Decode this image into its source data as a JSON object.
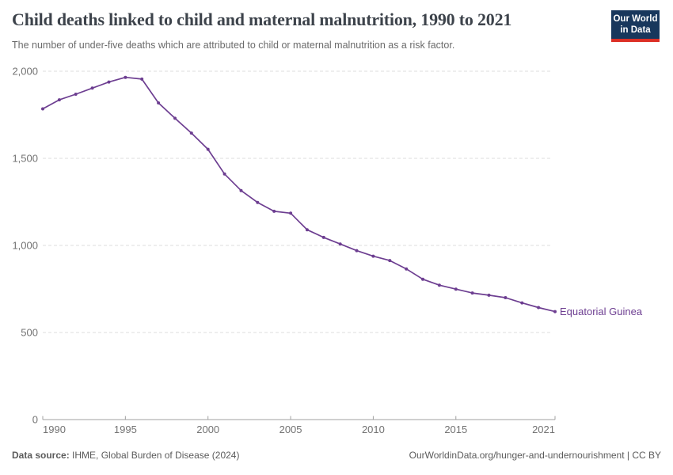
{
  "header": {
    "title": "Child deaths linked to child and maternal malnutrition, 1990 to 2021",
    "subtitle": "The number of under-five deaths which are attributed to child or maternal malnutrition as a risk factor.",
    "logo": {
      "line1": "Our World",
      "line2": "in Data",
      "bg_color": "#18375c",
      "accent_color": "#dc2f25"
    }
  },
  "chart_data": {
    "type": "line",
    "title": "Child deaths linked to child and maternal malnutrition, 1990 to 2021",
    "subtitle": "The number of under-five deaths which are attributed to child or maternal malnutrition as a risk factor.",
    "xlabel": "",
    "ylabel": "",
    "ylim": [
      0,
      2000
    ],
    "yticks": [
      0,
      500,
      1000,
      1500,
      2000
    ],
    "ytick_labels": [
      "0",
      "500",
      "1,000",
      "1,500",
      "2,000"
    ],
    "xticks": [
      1990,
      1995,
      2000,
      2005,
      2010,
      2015,
      2021
    ],
    "xtick_labels": [
      "1990",
      "1995",
      "2000",
      "2005",
      "2010",
      "2015",
      "2021"
    ],
    "grid": "horizontal-dashed",
    "legend_position": "end-of-line-label",
    "x": [
      1990,
      1991,
      1992,
      1993,
      1994,
      1995,
      1996,
      1997,
      1998,
      1999,
      2000,
      2001,
      2002,
      2003,
      2004,
      2005,
      2006,
      2007,
      2008,
      2009,
      2010,
      2011,
      2012,
      2013,
      2014,
      2015,
      2016,
      2017,
      2018,
      2019,
      2020,
      2021
    ],
    "series": [
      {
        "name": "Equatorial Guinea",
        "color": "#6d3e91",
        "values": [
          1784,
          1836,
          1868,
          1903,
          1938,
          1965,
          1955,
          1818,
          1730,
          1645,
          1552,
          1410,
          1315,
          1247,
          1196,
          1185,
          1090,
          1046,
          1008,
          970,
          938,
          913,
          865,
          806,
          772,
          749,
          727,
          714,
          700,
          670,
          643,
          620
        ]
      }
    ]
  },
  "footer": {
    "source_label": "Data source:",
    "source_value": " IHME, Global Burden of Disease (2024)",
    "credit": "OurWorldinData.org/hunger-and-undernourishment | CC BY"
  },
  "colors": {
    "title": "#3d434b",
    "subtitle": "#6b6b6b",
    "grid": "#dcdcdc",
    "axis": "#a0a0a0",
    "tick_text": "#737373",
    "footer_text": "#5b5b5b",
    "series": "#6d3e91"
  }
}
